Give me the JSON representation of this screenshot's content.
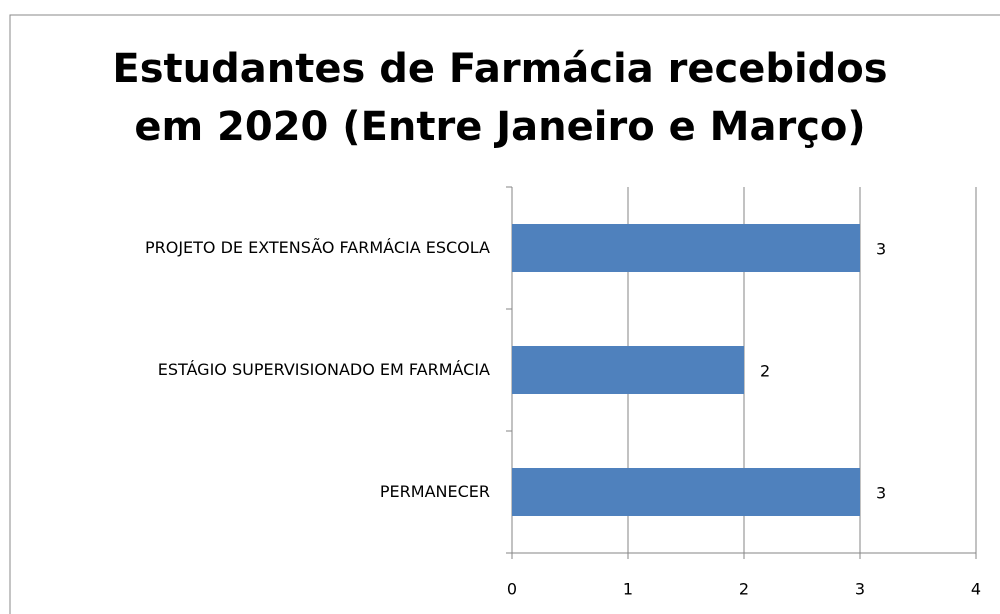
{
  "chart_data": {
    "type": "bar",
    "orientation": "horizontal",
    "title": "Estudantes de Farmácia recebidos em 2020 (Entre Janeiro e Março)",
    "categories": [
      "PROJETO DE EXTENSÃO FARMÁCIA ESCOLA",
      "ESTÁGIO SUPERVISIONADO EM FARMÁCIA",
      "PERMANECER"
    ],
    "values": [
      3,
      2,
      3
    ],
    "color": "#4f81bd",
    "xlim": [
      0,
      4
    ],
    "xticks": [
      0,
      1,
      2,
      3,
      4
    ],
    "grid": true
  }
}
